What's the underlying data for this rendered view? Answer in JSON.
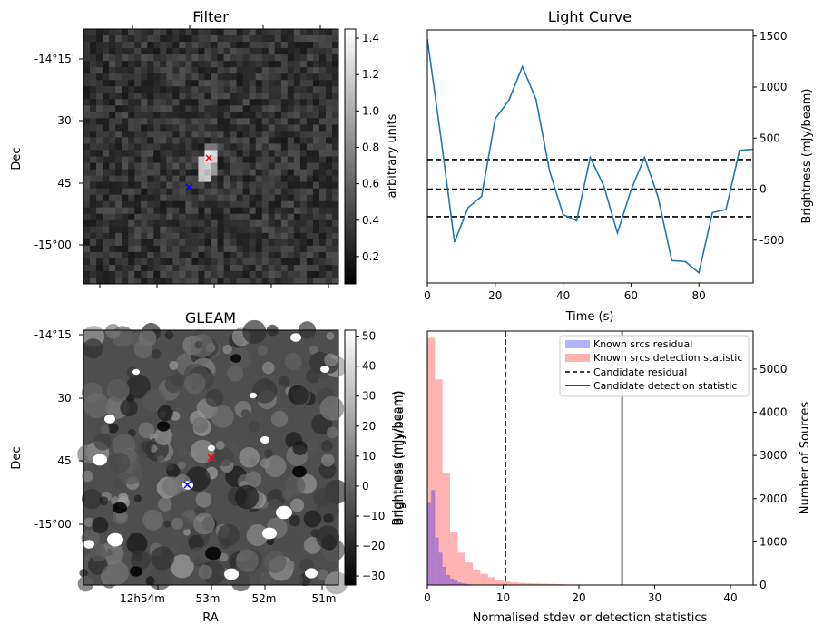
{
  "chart_data": [
    {
      "type": "heatmap",
      "title": "Filter",
      "xlabel": "",
      "ylabel": "Dec",
      "y_ticks": [
        "-14°15'",
        "30'",
        "45'",
        "-15°00'"
      ],
      "colorbar": {
        "label": "arbitrary units",
        "ticks": [
          "0.2",
          "0.4",
          "0.6",
          "0.8",
          "1.0",
          "1.2",
          "1.4"
        ],
        "range": [
          0.05,
          1.45
        ],
        "colormap": "grayscale"
      },
      "markers": [
        {
          "symbol": "x",
          "color": "#ff0000"
        },
        {
          "symbol": "x",
          "color": "#0000ff"
        }
      ]
    },
    {
      "type": "line",
      "title": "Light Curve",
      "xlabel": "Time (s)",
      "ylabel": "Brightness (mJy/beam)",
      "y_axis_side": "right",
      "x_ticks": [
        "0",
        "20",
        "40",
        "60",
        "80"
      ],
      "y_ticks": [
        "-500",
        "0",
        "500",
        "1000",
        "1500"
      ],
      "xlim": [
        0,
        96
      ],
      "ylim": [
        -920,
        1560
      ],
      "series": [
        {
          "color": "#1f77b4",
          "x": [
            0,
            4,
            8,
            12,
            16,
            20,
            24,
            28,
            32,
            36,
            40,
            44,
            48,
            52,
            56,
            60,
            64,
            68,
            72,
            76,
            80,
            84,
            88,
            92,
            96
          ],
          "y": [
            1470,
            500,
            -520,
            -180,
            -70,
            690,
            870,
            1200,
            880,
            180,
            -250,
            -310,
            310,
            30,
            -430,
            -10,
            310,
            -80,
            -700,
            -710,
            -820,
            -230,
            -200,
            380,
            390
          ]
        }
      ],
      "hlines": [
        {
          "y": 290,
          "style": "dashed",
          "color": "#000000"
        },
        {
          "y": 0,
          "style": "dashed",
          "color": "#000000"
        },
        {
          "y": -270,
          "style": "dashed",
          "color": "#000000"
        }
      ]
    },
    {
      "type": "heatmap",
      "title": "GLEAM",
      "xlabel": "RA",
      "ylabel": "Dec",
      "x_ticks": [
        "12h54m",
        "53m",
        "52m",
        "51m"
      ],
      "y_ticks": [
        "-14°15'",
        "30'",
        "45'",
        "-15°00'"
      ],
      "colorbar": {
        "label": "Brightness (mJy/beam)",
        "ticks": [
          "−30",
          "−20",
          "−10",
          "0",
          "10",
          "20",
          "30",
          "40",
          "50"
        ],
        "range": [
          -33,
          52
        ],
        "colormap": "grayscale"
      },
      "markers": [
        {
          "symbol": "x",
          "color": "#ff0000"
        },
        {
          "symbol": "x",
          "color": "#0000ff"
        }
      ]
    },
    {
      "type": "bar",
      "title": "",
      "xlabel": "Normalised stdev or detection statistics",
      "ylabel": "Brightness (mJy/beam)",
      "ylabel_right": "Number of Sources",
      "x_ticks": [
        "0",
        "10",
        "20",
        "30",
        "40"
      ],
      "y_ticks": [
        "0",
        "1000",
        "2000",
        "3000",
        "4000",
        "5000"
      ],
      "xlim": [
        0,
        43
      ],
      "ylim": [
        0,
        5880
      ],
      "series": [
        {
          "name": "Known srcs residual",
          "color": "#0000ff",
          "opacity": 0.3,
          "bin_width": 0.5,
          "bin_start": 0,
          "values": [
            1900,
            2200,
            1100,
            750,
            420,
            230,
            150,
            100,
            60,
            40,
            25,
            15,
            10,
            8,
            5,
            3,
            2,
            1
          ]
        },
        {
          "name": "Known srcs detection statistic",
          "color": "#ff0000",
          "opacity": 0.3,
          "bin_start": 0,
          "bin_width": 1,
          "values": [
            5720,
            4760,
            2580,
            1230,
            750,
            520,
            360,
            260,
            180,
            110,
            80,
            60,
            50,
            40,
            35,
            30,
            25,
            20,
            15,
            12,
            10,
            10,
            8,
            6,
            5,
            5,
            4,
            3,
            3,
            2,
            2,
            2,
            1,
            1,
            1,
            1,
            1,
            0,
            0,
            0,
            1,
            0
          ]
        }
      ],
      "vlines": [
        {
          "name": "Candidate residual",
          "x": 10.3,
          "style": "dashed",
          "color": "#000000"
        },
        {
          "name": "Candidate detection statistic",
          "x": 25.7,
          "style": "solid",
          "color": "#000000"
        }
      ],
      "legend_position": "top-right"
    }
  ]
}
